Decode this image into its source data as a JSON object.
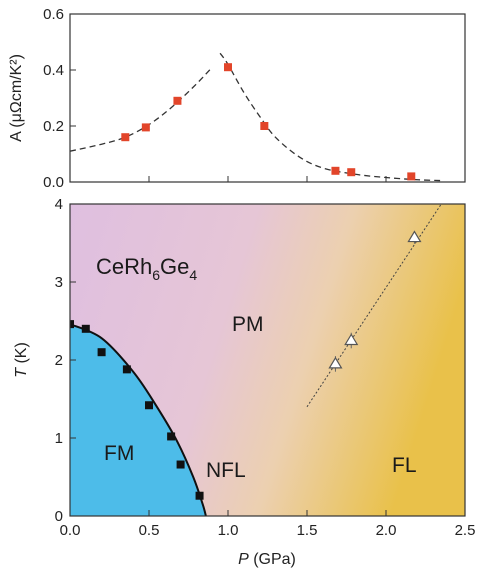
{
  "chart_data": [
    {
      "type": "scatter",
      "ylabel": "A (μΩcm/K²)",
      "xlim": [
        0,
        2.5
      ],
      "ylim": [
        0,
        0.6
      ],
      "yticks": [
        "0.0",
        "0.2",
        "0.4",
        "0.6"
      ],
      "series": [
        {
          "marker": "square",
          "color": "#e2452a",
          "x": [
            0.35,
            0.48,
            0.68,
            1.0,
            1.23,
            1.68,
            1.78,
            2.16
          ],
          "y": [
            0.16,
            0.195,
            0.29,
            0.41,
            0.2,
            0.04,
            0.035,
            0.02
          ]
        }
      ],
      "fit_curves": [
        {
          "style": "dashed",
          "x": [
            0.0,
            0.2,
            0.35,
            0.5,
            0.65,
            0.8,
            0.9
          ],
          "y": [
            0.11,
            0.135,
            0.16,
            0.205,
            0.27,
            0.35,
            0.41
          ]
        },
        {
          "style": "dashed",
          "x": [
            0.95,
            1.0,
            1.1,
            1.2,
            1.3,
            1.45,
            1.6,
            1.8,
            2.0,
            2.2,
            2.35
          ],
          "y": [
            0.46,
            0.42,
            0.32,
            0.235,
            0.16,
            0.09,
            0.05,
            0.028,
            0.016,
            0.008,
            0.005
          ]
        }
      ]
    },
    {
      "type": "scatter",
      "xlabel_italic": "P",
      "xlabel_rest": " (GPa)",
      "ylabel": "T (K)",
      "ylabel_italic": "T",
      "ylabel_rest": " (K)",
      "xlim": [
        0,
        2.5
      ],
      "ylim": [
        0,
        4
      ],
      "xticks": [
        "0.0",
        "0.5",
        "1.0",
        "1.5",
        "2.0",
        "2.5"
      ],
      "yticks": [
        "0",
        "1",
        "2",
        "3",
        "4"
      ],
      "compound_parts": [
        "CeRh",
        "6",
        "Ge",
        "4"
      ],
      "region_labels": {
        "pm": "PM",
        "fm": "FM",
        "nfl": "NFL",
        "fl": "FL"
      },
      "colors": {
        "fm": "#4dbce9",
        "pm": "#e2c0df",
        "fl": "#ecc24a"
      },
      "series": [
        {
          "marker": "square",
          "color": "#111111",
          "x": [
            0.0,
            0.1,
            0.2,
            0.36,
            0.5,
            0.64,
            0.7,
            0.82
          ],
          "y": [
            2.46,
            2.4,
            2.1,
            1.88,
            1.42,
            1.02,
            0.66,
            0.26
          ]
        },
        {
          "marker": "triangle-open",
          "color": "#555555",
          "x": [
            1.68,
            1.78,
            2.18
          ],
          "y": [
            1.95,
            2.25,
            3.57
          ],
          "yerr": [
            0.1,
            0.1,
            0.08
          ]
        }
      ],
      "phase_boundary": {
        "x": [
          0.0,
          0.2,
          0.4,
          0.55,
          0.68,
          0.78,
          0.84,
          0.86
        ],
        "y": [
          2.46,
          2.28,
          1.85,
          1.4,
          0.95,
          0.5,
          0.15,
          0.0
        ]
      },
      "fl_boundary": {
        "x": [
          1.5,
          2.35
        ],
        "y": [
          1.4,
          4.0
        ]
      }
    }
  ]
}
